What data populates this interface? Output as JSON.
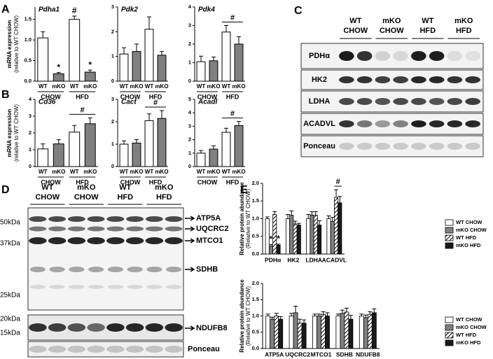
{
  "panels": [
    "A",
    "B",
    "C",
    "D",
    "E"
  ],
  "chart_data": [
    {
      "type": "bar",
      "title": "Pdha1",
      "ylabel": [
        "mRNA expression",
        "(relative to WT CHOW)"
      ],
      "categories": [
        "WT",
        "mKO",
        "WT",
        "mKO"
      ],
      "groups": [
        "CHOW",
        "HFD"
      ],
      "values": [
        1.05,
        0.18,
        1.5,
        0.22
      ],
      "errors": [
        0.15,
        0.03,
        0.08,
        0.05
      ],
      "colors": [
        "#ffffff",
        "#808080",
        "#ffffff",
        "#808080"
      ],
      "ylim": [
        0,
        1.8
      ],
      "yticks": [
        {
          "value": 0,
          "label": "0.0"
        },
        {
          "value": 0.5,
          "label": "0.5"
        },
        {
          "value": 1,
          "label": "1.0"
        },
        {
          "value": 1.5,
          "label": "1.5"
        }
      ],
      "bar_annotations": [
        null,
        "*",
        "#",
        "*"
      ]
    },
    {
      "type": "bar",
      "title": "Pdk2",
      "categories": [
        "WT",
        "mKO",
        "WT",
        "mKO"
      ],
      "groups": [
        "CHOW",
        "HFD"
      ],
      "values": [
        1.1,
        1.2,
        2.1,
        1.05
      ],
      "errors": [
        0.25,
        0.3,
        0.5,
        0.15
      ],
      "colors": [
        "#ffffff",
        "#808080",
        "#ffffff",
        "#808080"
      ],
      "ylim": [
        0,
        3
      ],
      "yticks": [
        0,
        1,
        2,
        3
      ]
    },
    {
      "type": "bar",
      "title": "Pdk4",
      "categories": [
        "WT",
        "mKO",
        "WT",
        "mKO"
      ],
      "groups": [
        "CHOW",
        "HFD"
      ],
      "values": [
        1.05,
        1.1,
        2.65,
        2.0
      ],
      "errors": [
        0.3,
        0.2,
        0.35,
        0.4
      ],
      "colors": [
        "#ffffff",
        "#808080",
        "#ffffff",
        "#808080"
      ],
      "ylim": [
        0,
        4
      ],
      "yticks": [
        0,
        1,
        2,
        3,
        4
      ],
      "group_annotations": [
        null,
        "#"
      ]
    },
    {
      "type": "bar",
      "title": "Cd36",
      "ylabel": [
        "mRNA expression",
        "(relative to WT CHOW)"
      ],
      "categories": [
        "WT",
        "mKO",
        "WT",
        "mKO"
      ],
      "groups": [
        "CHOW",
        "HFD"
      ],
      "values": [
        1.05,
        1.35,
        2.05,
        2.55
      ],
      "errors": [
        0.3,
        0.25,
        0.4,
        0.35
      ],
      "colors": [
        "#ffffff",
        "#808080",
        "#ffffff",
        "#808080"
      ],
      "ylim": [
        0,
        4
      ],
      "yticks": [
        0,
        1,
        2,
        3,
        4
      ],
      "group_annotations": [
        null,
        "#"
      ]
    },
    {
      "type": "bar",
      "title": "Cact",
      "categories": [
        "WT",
        "mKO",
        "WT",
        "mKO"
      ],
      "groups": [
        "CHOW",
        "HFD"
      ],
      "values": [
        1.0,
        1.05,
        2.05,
        2.15
      ],
      "errors": [
        0.15,
        0.15,
        0.3,
        0.35
      ],
      "colors": [
        "#ffffff",
        "#808080",
        "#ffffff",
        "#808080"
      ],
      "ylim": [
        0,
        3
      ],
      "yticks": [
        0,
        1,
        2,
        3
      ],
      "group_annotations": [
        null,
        "#"
      ]
    },
    {
      "type": "bar",
      "title": "Acadl",
      "categories": [
        "WT",
        "mKO",
        "WT",
        "mKO"
      ],
      "groups": [
        "CHOW",
        "HFD"
      ],
      "values": [
        1.0,
        1.3,
        2.55,
        3.05
      ],
      "errors": [
        0.2,
        0.25,
        0.3,
        0.3
      ],
      "colors": [
        "#ffffff",
        "#808080",
        "#ffffff",
        "#808080"
      ],
      "ylim": [
        0,
        5
      ],
      "yticks": [
        0,
        1,
        2,
        3,
        4,
        5
      ],
      "group_annotations": [
        null,
        "#"
      ]
    },
    {
      "type": "grouped_bar",
      "ylabel": [
        "Relative protein abundance",
        "(Relative to WT CHOW)"
      ],
      "categories": [
        "PDHα",
        "HK2",
        "LDHA",
        "ACADVL"
      ],
      "series": [
        {
          "name": "WT CHOW",
          "color": "#ffffff",
          "values": [
            1.0,
            1.0,
            1.0,
            1.0
          ],
          "errors": [
            0.05,
            0.12,
            0.12,
            0.08
          ]
        },
        {
          "name": "mKO CHOW",
          "color": "#808080",
          "values": [
            0.22,
            1.1,
            1.1,
            0.92
          ],
          "errors": [
            0.05,
            0.12,
            0.1,
            0.12
          ],
          "annotations": [
            "*",
            null,
            null,
            null
          ]
        },
        {
          "name": "WT HFD",
          "color": "#ffffff",
          "hatch": true,
          "values": [
            1.12,
            0.85,
            1.1,
            1.6
          ],
          "errors": [
            0.08,
            0.08,
            0.1,
            0.22
          ]
        },
        {
          "name": "mKO HFD",
          "color": "#1a1a1a",
          "values": [
            0.25,
            0.82,
            0.82,
            1.45
          ],
          "errors": [
            0.03,
            0.05,
            0.12,
            0.18
          ],
          "annotations": [
            "*",
            null,
            null,
            null
          ]
        }
      ],
      "ylim": [
        0,
        2
      ],
      "yticks": [
        {
          "value": 0,
          "label": "0.0"
        },
        {
          "value": 0.5,
          "label": "0.5"
        },
        {
          "value": 1,
          "label": "1.0"
        },
        {
          "value": 1.5,
          "label": "1.5"
        },
        {
          "value": 2,
          "label": "2.0"
        }
      ],
      "legend": "right",
      "group_annotations": [
        null,
        null,
        null,
        "#"
      ]
    },
    {
      "type": "grouped_bar",
      "ylabel": [
        "Relative protein abundance",
        "(Relative to WT CHOW)"
      ],
      "categories": [
        "ATP5A",
        "UQCRC2",
        "MTCO1",
        "SDHB",
        "NDUFB8"
      ],
      "series": [
        {
          "name": "WT CHOW",
          "color": "#ffffff",
          "values": [
            1.0,
            1.0,
            1.0,
            1.0,
            1.0
          ],
          "errors": [
            0.06,
            0.08,
            0.06,
            0.06,
            0.06
          ]
        },
        {
          "name": "mKO CHOW",
          "color": "#808080",
          "values": [
            0.9,
            1.1,
            1.0,
            1.08,
            0.95
          ],
          "errors": [
            0.06,
            0.2,
            0.06,
            0.1,
            0.08
          ]
        },
        {
          "name": "WT HFD",
          "color": "#ffffff",
          "hatch": true,
          "values": [
            1.0,
            0.78,
            1.05,
            1.12,
            1.05
          ],
          "errors": [
            0.08,
            0.12,
            0.08,
            0.12,
            0.08
          ]
        },
        {
          "name": "mKO HFD",
          "color": "#1a1a1a",
          "values": [
            0.9,
            0.78,
            1.0,
            0.9,
            1.1
          ],
          "errors": [
            0.08,
            0.1,
            0.1,
            0.12,
            0.12
          ]
        }
      ],
      "ylim": [
        0,
        2
      ],
      "yticks": [
        {
          "value": 0,
          "label": "0.0"
        },
        {
          "value": 0.5,
          "label": "0.5"
        },
        {
          "value": 1,
          "label": "1.0"
        },
        {
          "value": 1.5,
          "label": "1.5"
        },
        {
          "value": 2,
          "label": "2.0"
        }
      ],
      "legend": "right"
    }
  ],
  "blot_c": {
    "columns": [
      [
        "WT",
        "CHOW"
      ],
      [
        "mKO",
        "CHOW"
      ],
      [
        "WT",
        "HFD"
      ],
      [
        "mKO",
        "HFD"
      ]
    ],
    "rows": [
      "PDHα",
      "HK2",
      "LDHA",
      "ACADVL",
      "Ponceau"
    ]
  },
  "blot_d": {
    "columns": [
      [
        "WT",
        "CHOW"
      ],
      [
        "mKO",
        "CHOW"
      ],
      [
        "WT",
        "HFD"
      ],
      [
        "mKO",
        "HFD"
      ]
    ],
    "markers": [
      "50kDa",
      "37kDa",
      "25kDa",
      "20kDa",
      "15kDa"
    ],
    "bands": [
      "ATP5A",
      "UQCRC2",
      "MTCO1",
      "SDHB",
      "NDUFB8"
    ],
    "loading": "Ponceau"
  }
}
